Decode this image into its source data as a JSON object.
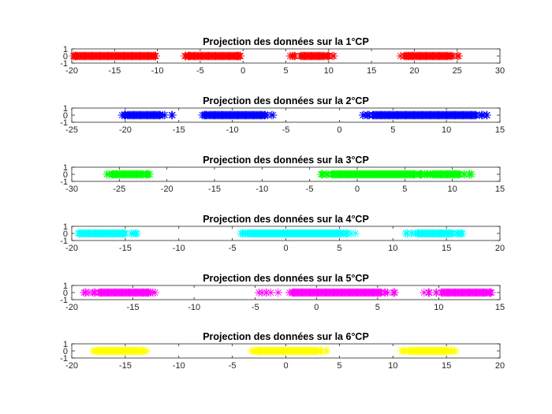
{
  "chart_data": [
    {
      "type": "scatter",
      "title": "Projection des données sur la 1°CP",
      "xlim": [
        -20,
        30
      ],
      "ylim": [
        -1,
        1
      ],
      "xticks": [
        "-20",
        "-15",
        "-10",
        "-5",
        "0",
        "5",
        "10",
        "15",
        "20",
        "25",
        "30"
      ],
      "yticks": [
        "-1",
        "0",
        "1"
      ],
      "marker": "*",
      "color": "#ff0000",
      "y": 0,
      "clusters": [
        {
          "min": -19.8,
          "max": -10.2,
          "dense_min": -19.5,
          "dense_max": -10.6
        },
        {
          "min": -6.8,
          "max": -0.3,
          "dense_min": -6.2,
          "dense_max": -0.7
        },
        {
          "min": 5.5,
          "max": 10.6,
          "dense_min": 6.9,
          "dense_max": 9.5
        },
        {
          "min": 18.4,
          "max": 25.2,
          "dense_min": 19.3,
          "dense_max": 24.0
        }
      ]
    },
    {
      "type": "scatter",
      "title": "Projection des données sur la 2°CP",
      "xlim": [
        -25,
        15
      ],
      "ylim": [
        -1,
        1
      ],
      "xticks": [
        "-25",
        "-20",
        "-15",
        "-10",
        "-5",
        "0",
        "5",
        "10",
        "15"
      ],
      "yticks": [
        "-1",
        "0",
        "1"
      ],
      "marker": "*",
      "color": "#0000ff",
      "y": 0,
      "clusters": [
        {
          "min": -20.3,
          "max": -15.6,
          "dense_min": -19.8,
          "dense_max": -16.8
        },
        {
          "min": -12.8,
          "max": -6.2,
          "dense_min": -12.2,
          "dense_max": -7.2
        },
        {
          "min": 2.2,
          "max": 13.8,
          "dense_min": 3.1,
          "dense_max": 12.8
        }
      ]
    },
    {
      "type": "scatter",
      "title": "Projection des données sur la 3°CP",
      "xlim": [
        -30,
        15
      ],
      "ylim": [
        -1,
        1
      ],
      "xticks": [
        "-30",
        "-25",
        "-20",
        "-15",
        "-10",
        "-5",
        "0",
        "5",
        "10",
        "15"
      ],
      "yticks": [
        "-1",
        "0",
        "1"
      ],
      "marker": "*",
      "color": "#00ff00",
      "y": 0,
      "clusters": [
        {
          "min": -26.3,
          "max": -21.8,
          "dense_min": -25.6,
          "dense_max": -22.5
        },
        {
          "min": -3.8,
          "max": 6.8,
          "dense_min": -2.7,
          "dense_max": 6.1
        },
        {
          "min": 7.1,
          "max": 12.0,
          "dense_min": 7.9,
          "dense_max": 10.8
        }
      ]
    },
    {
      "type": "scatter",
      "title": "Projection des données sur la 4°CP",
      "xlim": [
        -20,
        20
      ],
      "ylim": [
        -1,
        1
      ],
      "xticks": [
        "-20",
        "-15",
        "-10",
        "-5",
        "0",
        "5",
        "10",
        "15",
        "20"
      ],
      "yticks": [
        "-1",
        "0",
        "1"
      ],
      "marker": "*",
      "color": "#00ffff",
      "y": 0,
      "clusters": [
        {
          "min": -19.4,
          "max": -13.9,
          "dense_min": -19.0,
          "dense_max": -15.0
        },
        {
          "min": -4.2,
          "max": 6.5,
          "dense_min": -3.6,
          "dense_max": 5.2
        },
        {
          "min": 11.2,
          "max": 16.5,
          "dense_min": 12.3,
          "dense_max": 15.6
        }
      ]
    },
    {
      "type": "scatter",
      "title": "Projection des données sur la 5°CP",
      "xlim": [
        -20,
        15
      ],
      "ylim": [
        -1,
        1
      ],
      "xticks": [
        "-20",
        "-15",
        "-10",
        "-5",
        "0",
        "5",
        "10",
        "15"
      ],
      "yticks": [
        "-1",
        "0",
        "1"
      ],
      "marker": "*",
      "color": "#ff00ff",
      "y": 0,
      "clusters": [
        {
          "min": -19.0,
          "max": -13.2,
          "dense_min": -17.8,
          "dense_max": -13.8
        },
        {
          "min": -4.7,
          "max": 6.4,
          "dense_min": -2.0,
          "dense_max": 5.3
        },
        {
          "min": 8.8,
          "max": 14.3,
          "dense_min": 10.2,
          "dense_max": 13.9
        }
      ]
    },
    {
      "type": "scatter",
      "title": "Projection des données sur la 6°CP",
      "xlim": [
        -20,
        20
      ],
      "ylim": [
        -1,
        1
      ],
      "xticks": [
        "-20",
        "-15",
        "-10",
        "-5",
        "0",
        "5",
        "10",
        "15",
        "20"
      ],
      "yticks": [
        "-1",
        "0",
        "1"
      ],
      "marker": "*",
      "color": "#ffff00",
      "y": 0,
      "clusters": [
        {
          "min": -18.0,
          "max": -13.0,
          "dense_min": -17.3,
          "dense_max": -13.7
        },
        {
          "min": -3.2,
          "max": 3.8,
          "dense_min": -2.6,
          "dense_max": 3.0
        },
        {
          "min": 10.8,
          "max": 15.8,
          "dense_min": 11.7,
          "dense_max": 15.2
        }
      ]
    }
  ]
}
